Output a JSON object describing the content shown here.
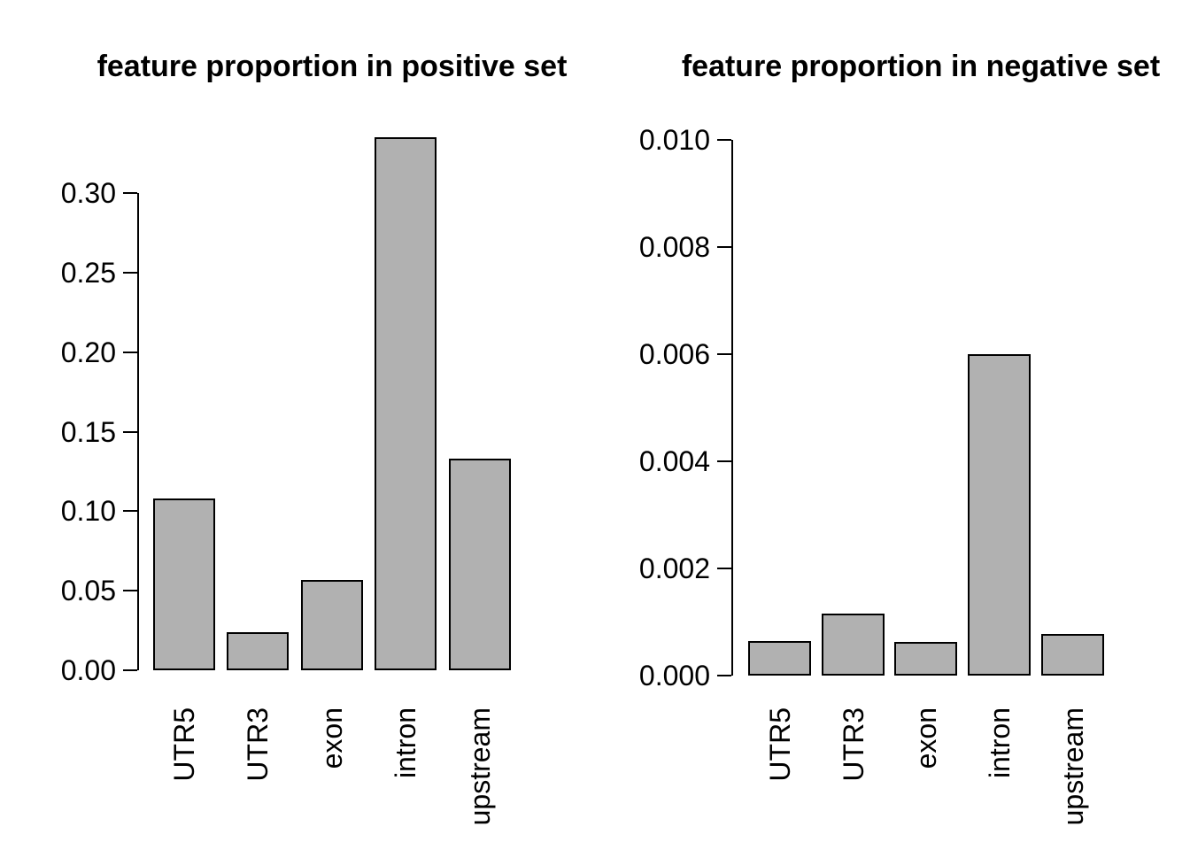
{
  "figure": {
    "background": "#ffffff",
    "bar_fill": "#b1b1b1",
    "bar_border": "#000000",
    "axis_color": "#000000",
    "text_color": "#000000"
  },
  "chart_data": [
    {
      "type": "bar",
      "title": "feature proportion in positive set",
      "categories": [
        "UTR5",
        "UTR3",
        "exon",
        "intron",
        "upstream"
      ],
      "values": [
        0.108,
        0.024,
        0.057,
        0.335,
        0.133
      ],
      "xlabel": "",
      "ylabel": "",
      "ylim": [
        0,
        0.3
      ],
      "yticks": [
        0,
        0.05,
        0.1,
        0.15,
        0.2,
        0.25,
        0.3
      ],
      "ytick_labels": [
        "0.00",
        "0.05",
        "0.10",
        "0.15",
        "0.20",
        "0.25",
        "0.30"
      ],
      "grid": false,
      "legend": null,
      "bar_color": "#b1b1b1"
    },
    {
      "type": "bar",
      "title": "feature proportion in negative set",
      "categories": [
        "UTR5",
        "UTR3",
        "exon",
        "intron",
        "upstream"
      ],
      "values": [
        0.00065,
        0.00115,
        0.00062,
        0.006,
        0.00077
      ],
      "xlabel": "",
      "ylabel": "",
      "ylim": [
        0,
        0.01
      ],
      "yticks": [
        0,
        0.002,
        0.004,
        0.006,
        0.008,
        0.01
      ],
      "ytick_labels": [
        "0.000",
        "0.002",
        "0.004",
        "0.006",
        "0.008",
        "0.010"
      ],
      "grid": false,
      "legend": null,
      "bar_color": "#b1b1b1"
    }
  ]
}
